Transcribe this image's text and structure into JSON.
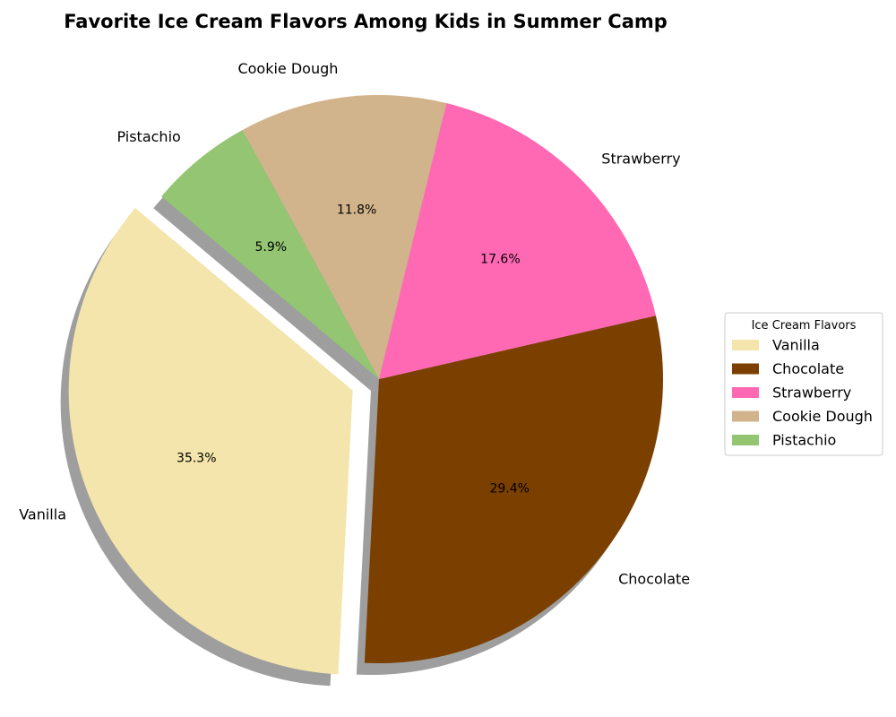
{
  "chart_data": {
    "type": "pie",
    "title": "Favorite Ice Cream Flavors Among Kids in Summer Camp",
    "categories": [
      "Vanilla",
      "Chocolate",
      "Strawberry",
      "Cookie Dough",
      "Pistachio"
    ],
    "values": [
      35.3,
      29.4,
      17.6,
      11.8,
      5.9
    ],
    "value_labels": [
      "35.3%",
      "29.4%",
      "17.6%",
      "11.8%",
      "5.9%"
    ],
    "colors": [
      "#F3E5AB",
      "#7B3F00",
      "#FF69B4",
      "#D2B48C",
      "#93C572"
    ],
    "exploded": [
      "Vanilla"
    ],
    "shadow": true,
    "legend": {
      "title": "Ice Cream Flavors",
      "entries": [
        "Vanilla",
        "Chocolate",
        "Strawberry",
        "Cookie Dough",
        "Pistachio"
      ],
      "placement": "center-right"
    }
  }
}
